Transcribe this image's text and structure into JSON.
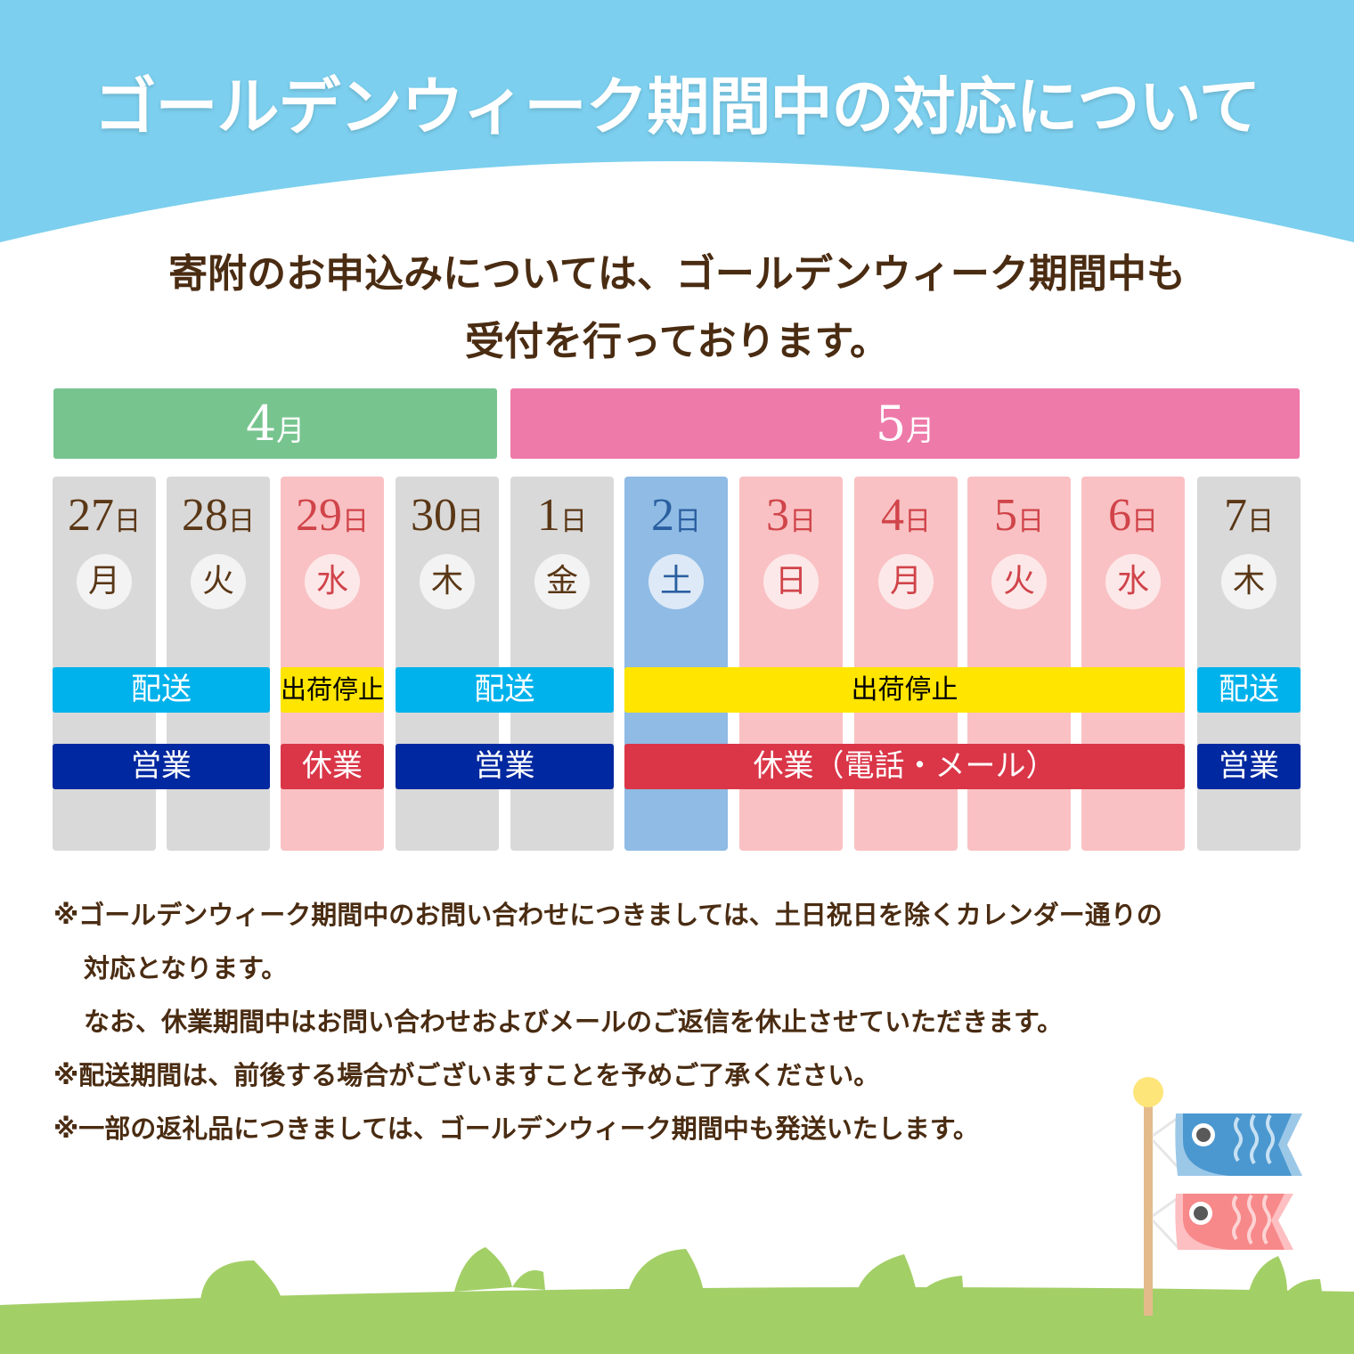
{
  "title": "ゴールデンウィーク期間中の対応について",
  "subtitle": [
    "寄附のお申込みについては、ゴールデンウィーク期間中も",
    "受付を行っております。"
  ],
  "months": [
    {
      "num": "4",
      "unit": "月",
      "color": "#77c48f"
    },
    {
      "num": "5",
      "unit": "月",
      "color": "#ee7aaa"
    }
  ],
  "day_unit": "日",
  "days": [
    {
      "day": "27",
      "weekday": "月",
      "type": "normal"
    },
    {
      "day": "28",
      "weekday": "火",
      "type": "normal"
    },
    {
      "day": "29",
      "weekday": "水",
      "type": "holiday"
    },
    {
      "day": "30",
      "weekday": "木",
      "type": "normal"
    },
    {
      "day": "1",
      "weekday": "金",
      "type": "normal"
    },
    {
      "day": "2",
      "weekday": "土",
      "type": "saturday"
    },
    {
      "day": "3",
      "weekday": "日",
      "type": "holiday"
    },
    {
      "day": "4",
      "weekday": "月",
      "type": "holiday"
    },
    {
      "day": "5",
      "weekday": "火",
      "type": "holiday"
    },
    {
      "day": "6",
      "weekday": "水",
      "type": "holiday"
    },
    {
      "day": "7",
      "weekday": "木",
      "type": "normal"
    }
  ],
  "shipping_bars": [
    {
      "label": "配送",
      "from": 0,
      "to": 1,
      "kind": "ship"
    },
    {
      "label": "出荷停止",
      "from": 2,
      "to": 2,
      "kind": "stop"
    },
    {
      "label": "配送",
      "from": 3,
      "to": 4,
      "kind": "ship"
    },
    {
      "label": "出荷停止",
      "from": 5,
      "to": 9,
      "kind": "stop"
    },
    {
      "label": "配送",
      "from": 10,
      "to": 10,
      "kind": "ship"
    }
  ],
  "business_bars": [
    {
      "label": "営業",
      "from": 0,
      "to": 1,
      "kind": "open"
    },
    {
      "label": "休業",
      "from": 2,
      "to": 2,
      "kind": "closed"
    },
    {
      "label": "営業",
      "from": 3,
      "to": 4,
      "kind": "open"
    },
    {
      "label": "休業（電話・メール）",
      "from": 5,
      "to": 9,
      "kind": "closed"
    },
    {
      "label": "営業",
      "from": 10,
      "to": 10,
      "kind": "open"
    }
  ],
  "colors": {
    "normal": "#d9d9d9",
    "holiday": "#f9c1c3",
    "saturday": "#8fbbe5",
    "ship": "#00b2ec",
    "stop": "#ffe500",
    "open": "#0028a0",
    "closed": "#da3648"
  },
  "notes": [
    "※ゴールデンウィーク期間中のお問い合わせにつきましては、土日祝日を除くカレンダー通りの",
    "対応となります。",
    "なお、休業期間中はお問い合わせおよびメールのご返信を休止させていただきます。",
    "※配送期間は、前後する場合がございますことを予めご了承ください。",
    "※一部の返礼品につきましては、ゴールデンウィーク期間中も発送いたします。"
  ]
}
